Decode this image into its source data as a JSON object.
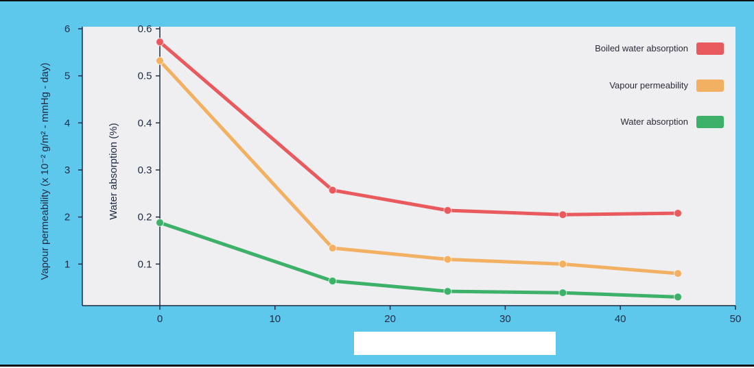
{
  "chart_data": {
    "type": "line",
    "title": "",
    "x": [
      0,
      15,
      25,
      35,
      45
    ],
    "xlim": [
      -7,
      50
    ],
    "x_ticks": [
      0,
      10,
      20,
      30,
      40,
      50
    ],
    "xlabel": "",
    "y_left": {
      "label": "Vapour permeability (x 10⁻² g/m² - mmHg - day)",
      "ticks": [
        1,
        2,
        3,
        4,
        5,
        6
      ],
      "lim": [
        0,
        6
      ]
    },
    "y_right": {
      "label": "Water absorption (%)",
      "ticks": [
        0.1,
        0.2,
        0.3,
        0.4,
        0.5,
        0.6
      ],
      "lim": [
        0,
        0.6
      ]
    },
    "series": [
      {
        "name": "Boiled water absorption",
        "axis": "water",
        "color": "#e85a5e",
        "values": [
          0.572,
          0.257,
          0.214,
          0.205,
          0.208
        ]
      },
      {
        "name": "Vapour permeability",
        "axis": "vapour",
        "color": "#f2b063",
        "values": [
          5.32,
          1.34,
          1.1,
          1.0,
          0.8
        ]
      },
      {
        "name": "Water absorption",
        "axis": "water",
        "color": "#3db06a",
        "values": [
          0.188,
          0.064,
          0.042,
          0.039,
          0.03
        ]
      }
    ],
    "legend": {
      "position": "top-right"
    },
    "grid": false
  }
}
